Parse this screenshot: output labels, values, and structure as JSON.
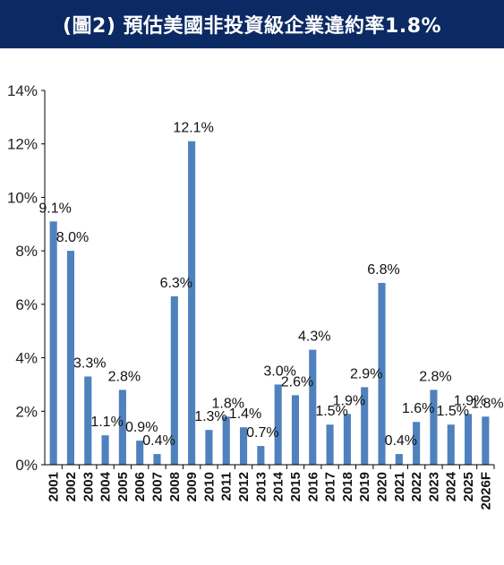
{
  "header": {
    "title": "(圖2) 預估美國非投資級企業違約率1.8%"
  },
  "colors": {
    "title_background": "#0b2a63",
    "title_text": "#ffffff",
    "bar": "#4f81bd",
    "axis": "#000000"
  },
  "chart_data": {
    "type": "bar",
    "title": "",
    "xlabel": "",
    "ylabel": "",
    "ylim": [
      0,
      14
    ],
    "yticks": [
      0,
      2,
      4,
      6,
      8,
      10,
      12,
      14
    ],
    "ytick_labels": [
      "0%",
      "2%",
      "4%",
      "6%",
      "8%",
      "10%",
      "12%",
      "14%"
    ],
    "grid": false,
    "legend": "none",
    "categories": [
      "2001",
      "2002",
      "2003",
      "2004",
      "2005",
      "2006",
      "2007",
      "2008",
      "2009",
      "2010",
      "2011",
      "2012",
      "2013",
      "2014",
      "2015",
      "2016",
      "2017",
      "2018",
      "2019",
      "2020",
      "2021",
      "2022",
      "2023",
      "2024",
      "2025",
      "2026F"
    ],
    "values": [
      9.1,
      8.0,
      3.3,
      1.1,
      2.8,
      0.9,
      0.4,
      6.3,
      12.1,
      1.3,
      1.8,
      1.4,
      0.7,
      3.0,
      2.6,
      4.3,
      1.5,
      1.9,
      2.9,
      6.8,
      0.4,
      1.6,
      2.8,
      1.5,
      1.9,
      1.8
    ],
    "data_labels": [
      "9.1%",
      "8.0%",
      "3.3%",
      "1.1%",
      "2.8%",
      "0.9%",
      "0.4%",
      "6.3%",
      "12.1%",
      "1.3%",
      "1.8%",
      "1.4%",
      "0.7%",
      "3.0%",
      "2.6%",
      "4.3%",
      "1.5%",
      "1.9%",
      "2.9%",
      "6.8%",
      "0.4%",
      "1.6%",
      "2.8%",
      "1.5%",
      "1.9%",
      "1.8%"
    ]
  }
}
